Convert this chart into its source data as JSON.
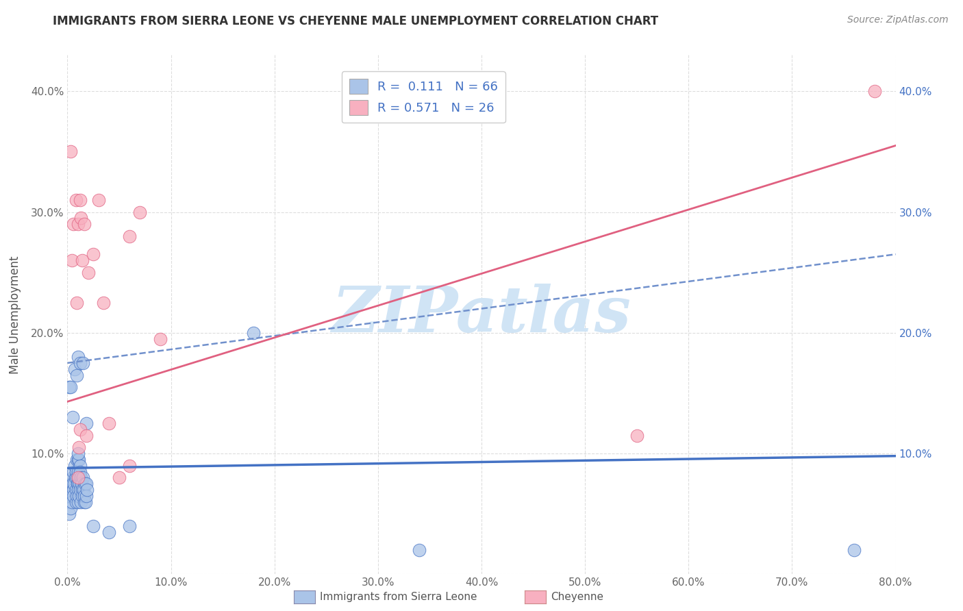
{
  "title": "IMMIGRANTS FROM SIERRA LEONE VS CHEYENNE MALE UNEMPLOYMENT CORRELATION CHART",
  "source": "Source: ZipAtlas.com",
  "ylabel": "Male Unemployment",
  "legend_label1": "Immigrants from Sierra Leone",
  "legend_label2": "Cheyenne",
  "R1": 0.111,
  "N1": 66,
  "R2": 0.571,
  "N2": 26,
  "color1": "#aac4e8",
  "color2": "#f8b0c0",
  "line1_color": "#4472c4",
  "line2_color": "#e06080",
  "line1_dash_color": "#7090cc",
  "watermark": "ZIPatlas",
  "watermark_color": "#d0e4f5",
  "xlim": [
    0.0,
    0.8
  ],
  "ylim": [
    0.0,
    0.43
  ],
  "xticks": [
    0.0,
    0.1,
    0.2,
    0.3,
    0.4,
    0.5,
    0.6,
    0.7,
    0.8
  ],
  "yticks": [
    0.0,
    0.1,
    0.2,
    0.3,
    0.4
  ],
  "blue_points_x": [
    0.0005,
    0.001,
    0.0015,
    0.002,
    0.0025,
    0.003,
    0.0035,
    0.004,
    0.0045,
    0.005,
    0.005,
    0.0055,
    0.006,
    0.006,
    0.0065,
    0.007,
    0.0075,
    0.008,
    0.008,
    0.0085,
    0.009,
    0.009,
    0.009,
    0.0095,
    0.01,
    0.01,
    0.01,
    0.01,
    0.0105,
    0.011,
    0.011,
    0.011,
    0.0115,
    0.012,
    0.012,
    0.0125,
    0.013,
    0.013,
    0.0135,
    0.014,
    0.0145,
    0.015,
    0.0155,
    0.016,
    0.0165,
    0.017,
    0.0175,
    0.018,
    0.0185,
    0.019,
    0.002,
    0.003,
    0.005,
    0.007,
    0.009,
    0.01,
    0.01,
    0.012,
    0.015,
    0.018,
    0.025,
    0.04,
    0.06,
    0.18,
    0.34,
    0.76
  ],
  "blue_points_y": [
    0.06,
    0.065,
    0.07,
    0.05,
    0.075,
    0.055,
    0.07,
    0.065,
    0.06,
    0.08,
    0.075,
    0.07,
    0.085,
    0.065,
    0.075,
    0.09,
    0.08,
    0.07,
    0.06,
    0.085,
    0.095,
    0.08,
    0.065,
    0.075,
    0.095,
    0.085,
    0.075,
    0.06,
    0.07,
    0.095,
    0.08,
    0.065,
    0.075,
    0.09,
    0.07,
    0.085,
    0.08,
    0.06,
    0.075,
    0.07,
    0.065,
    0.08,
    0.07,
    0.06,
    0.065,
    0.075,
    0.06,
    0.075,
    0.065,
    0.07,
    0.155,
    0.155,
    0.13,
    0.17,
    0.165,
    0.1,
    0.18,
    0.175,
    0.175,
    0.125,
    0.04,
    0.035,
    0.04,
    0.2,
    0.02,
    0.02
  ],
  "pink_points_x": [
    0.003,
    0.0045,
    0.006,
    0.008,
    0.009,
    0.01,
    0.011,
    0.012,
    0.013,
    0.014,
    0.016,
    0.018,
    0.02,
    0.025,
    0.03,
    0.035,
    0.05,
    0.06,
    0.07,
    0.09,
    0.01,
    0.012,
    0.04,
    0.06,
    0.55,
    0.78
  ],
  "pink_points_y": [
    0.35,
    0.26,
    0.29,
    0.31,
    0.225,
    0.29,
    0.105,
    0.12,
    0.295,
    0.26,
    0.29,
    0.115,
    0.25,
    0.265,
    0.31,
    0.225,
    0.08,
    0.09,
    0.3,
    0.195,
    0.08,
    0.31,
    0.125,
    0.28,
    0.115,
    0.4
  ],
  "blue_line_x0": 0.0,
  "blue_line_y0": 0.088,
  "blue_line_x1": 0.8,
  "blue_line_y1": 0.098,
  "blue_dash_line_x0": 0.0,
  "blue_dash_line_y0": 0.175,
  "blue_dash_line_x1": 0.8,
  "blue_dash_line_y1": 0.265,
  "pink_line_x0": 0.0,
  "pink_line_y0": 0.143,
  "pink_line_x1": 0.8,
  "pink_line_y1": 0.355
}
